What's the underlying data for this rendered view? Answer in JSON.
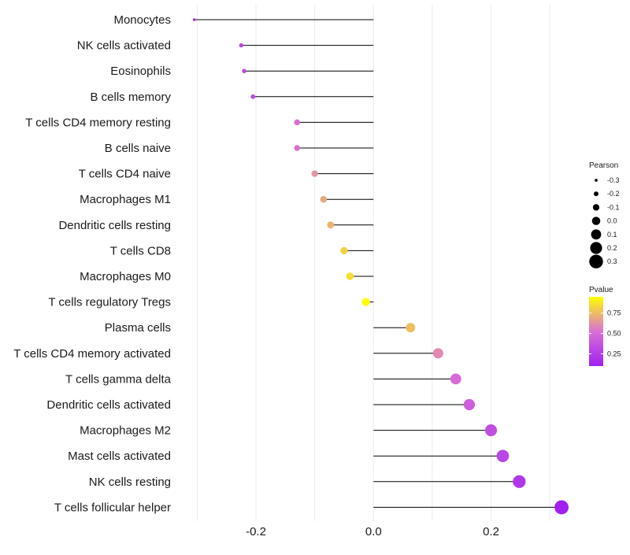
{
  "chart_data": {
    "type": "lollipop",
    "title": "",
    "xlabel": "",
    "ylabel": "",
    "xlim": [
      -0.33,
      0.34
    ],
    "x_ticks": [
      {
        "value": -0.2,
        "label": "-0.2"
      },
      {
        "value": 0.0,
        "label": "0.0"
      },
      {
        "value": 0.2,
        "label": "0.2"
      }
    ],
    "grid": true,
    "points": [
      {
        "category": "Monocytes",
        "pearson": -0.305,
        "pvalue": 0.15
      },
      {
        "category": "NK cells activated",
        "pearson": -0.225,
        "pvalue": 0.28
      },
      {
        "category": "Eosinophils",
        "pearson": -0.22,
        "pvalue": 0.29
      },
      {
        "category": "B cells memory",
        "pearson": -0.205,
        "pvalue": 0.32
      },
      {
        "category": "T cells CD4 memory resting",
        "pearson": -0.13,
        "pvalue": 0.52
      },
      {
        "category": "B cells naive",
        "pearson": -0.13,
        "pvalue": 0.52
      },
      {
        "category": "T cells CD4 naive",
        "pearson": -0.1,
        "pvalue": 0.63
      },
      {
        "category": "Macrophages M1",
        "pearson": -0.085,
        "pvalue": 0.69
      },
      {
        "category": "Dendritic cells resting",
        "pearson": -0.073,
        "pvalue": 0.73
      },
      {
        "category": "T cells CD8",
        "pearson": -0.05,
        "pvalue": 0.81
      },
      {
        "category": "Macrophages M0",
        "pearson": -0.04,
        "pvalue": 0.85
      },
      {
        "category": "T cells regulatory  Tregs ",
        "pearson": -0.013,
        "pvalue": 0.95
      },
      {
        "category": "Plasma cells",
        "pearson": 0.063,
        "pvalue": 0.76
      },
      {
        "category": "T cells CD4 memory activated",
        "pearson": 0.11,
        "pvalue": 0.6
      },
      {
        "category": "T cells gamma delta",
        "pearson": 0.14,
        "pvalue": 0.5
      },
      {
        "category": "Dendritic cells activated",
        "pearson": 0.163,
        "pvalue": 0.43
      },
      {
        "category": "Macrophages M2",
        "pearson": 0.2,
        "pvalue": 0.34
      },
      {
        "category": "Mast cells activated",
        "pearson": 0.22,
        "pvalue": 0.29
      },
      {
        "category": "NK cells resting",
        "pearson": 0.248,
        "pvalue": 0.22
      },
      {
        "category": "T cells follicular helper",
        "pearson": 0.32,
        "pvalue": 0.1
      }
    ],
    "size_legend": {
      "title": "Pearson",
      "position": "right",
      "items": [
        {
          "value": -0.3,
          "label": "-0.3"
        },
        {
          "value": -0.2,
          "label": "-0.2"
        },
        {
          "value": -0.1,
          "label": "-0.1"
        },
        {
          "value": 0.0,
          "label": "0.0"
        },
        {
          "value": 0.1,
          "label": "0.1"
        },
        {
          "value": 0.2,
          "label": "0.2"
        },
        {
          "value": 0.3,
          "label": "0.3"
        }
      ]
    },
    "color_legend": {
      "title": "Pvalue",
      "position": "right",
      "range": [
        0.1,
        0.95
      ],
      "ticks": [
        {
          "value": 0.75,
          "label": "0.75"
        },
        {
          "value": 0.5,
          "label": "0.50"
        },
        {
          "value": 0.25,
          "label": "0.25"
        }
      ],
      "low_color": "#A020F0",
      "mid_color": "#DA70D6",
      "high_color": "#FFFF00"
    },
    "colors": {
      "segment": "#000000",
      "grid": "#ebebeb",
      "background": "#ffffff"
    }
  }
}
